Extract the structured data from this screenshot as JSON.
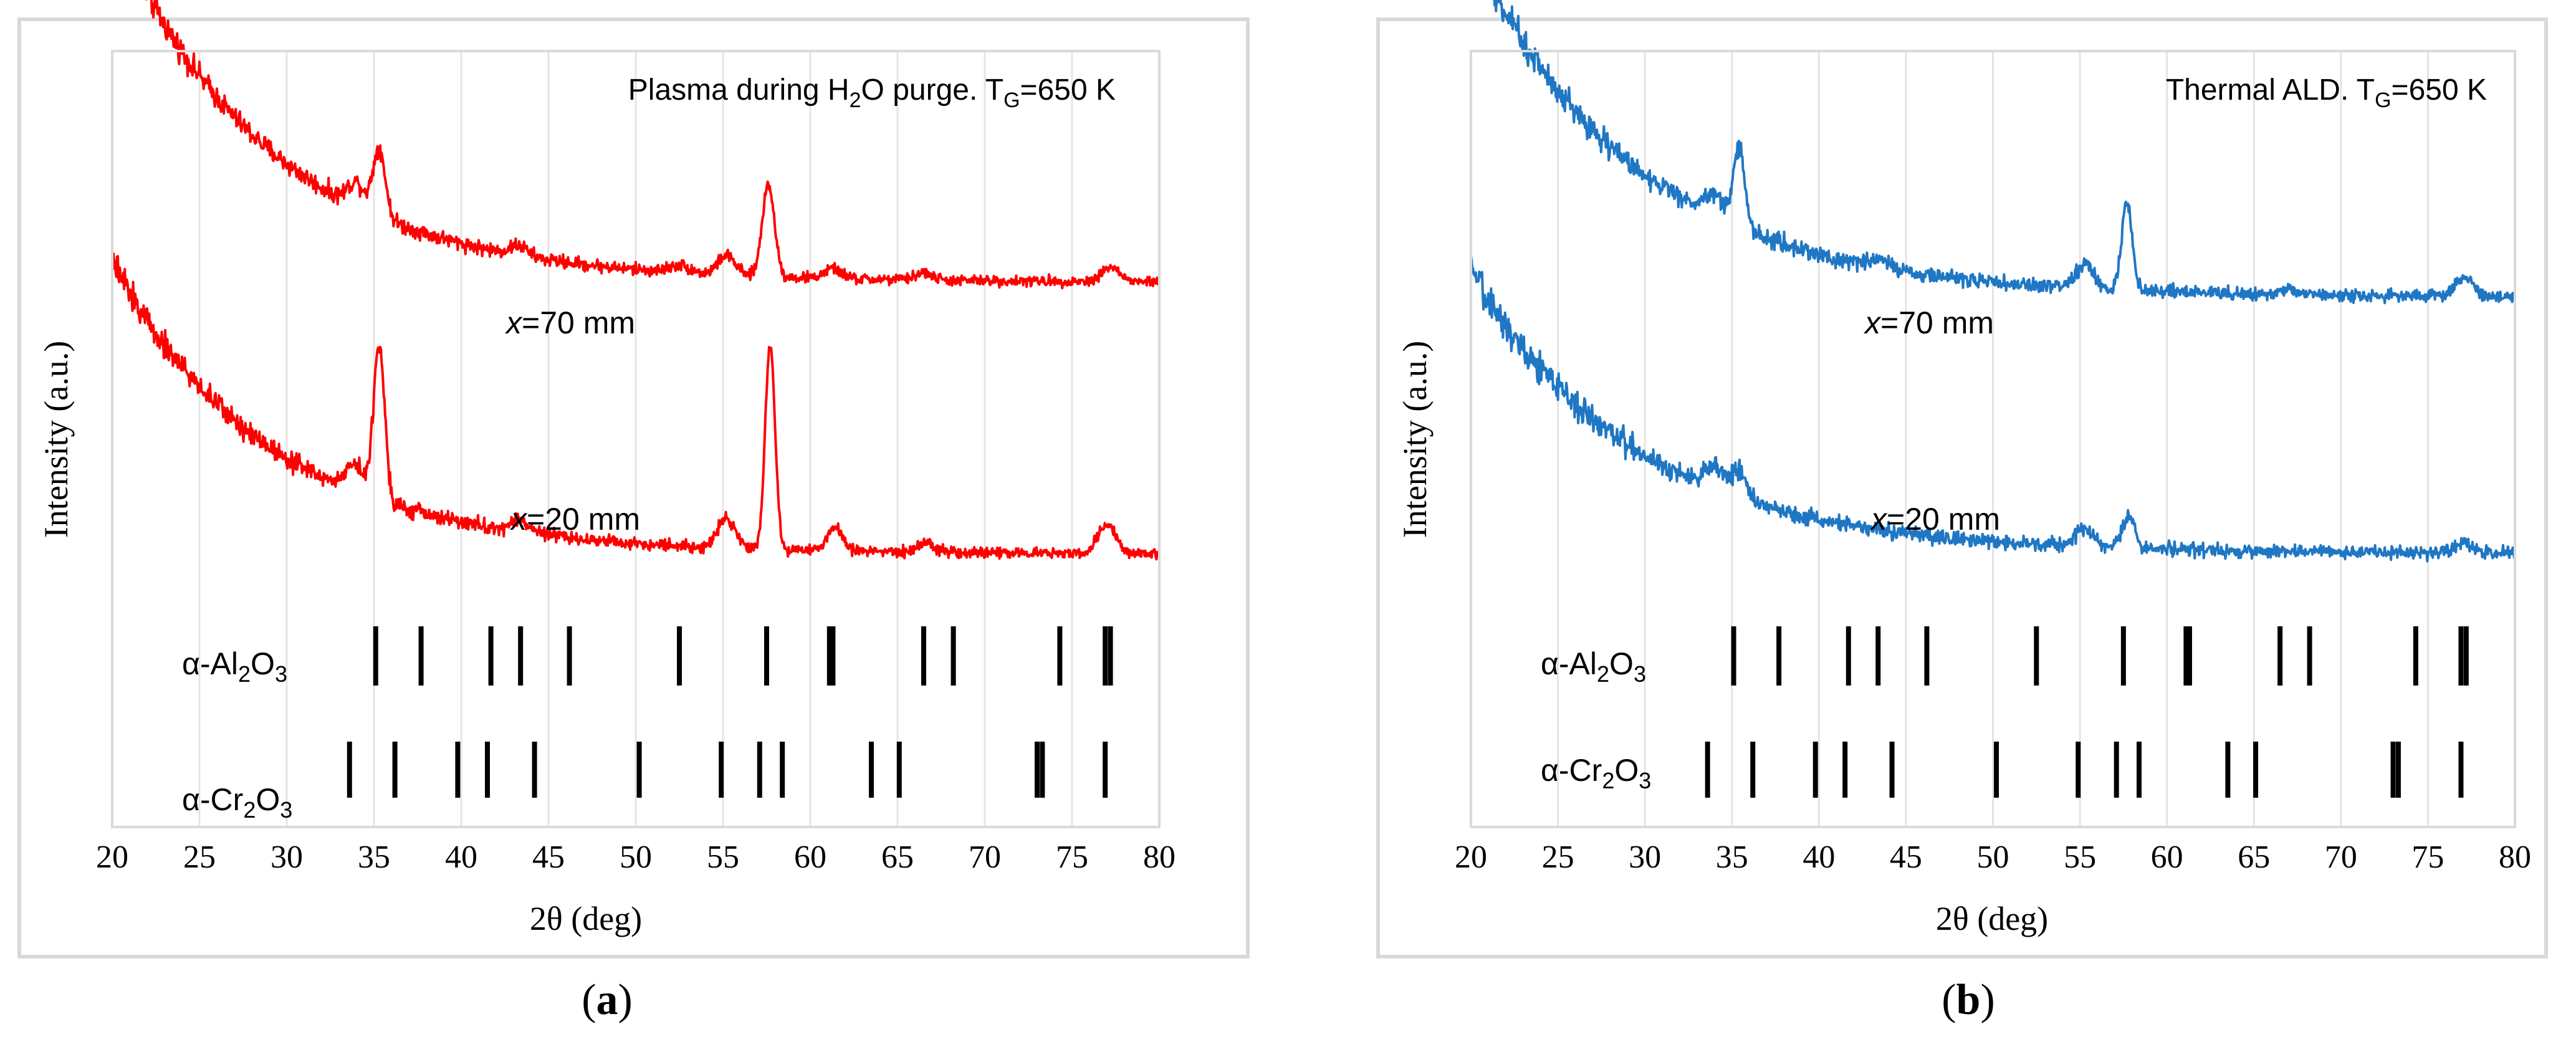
{
  "panels": [
    {
      "label": "a",
      "condition_prefix": "Plasma during H",
      "condition_sub1": "2",
      "condition_mid": "O purge.  T",
      "condition_sub2": "G",
      "condition_suffix": "=650 K",
      "ylabel": "Intensity (a.u.)",
      "xlabel": "2θ (deg)",
      "color": "#ff0000",
      "curve_labels": [
        {
          "var": "x",
          "rest": "=70 mm"
        },
        {
          "var": "x",
          "rest": "=20 mm"
        }
      ]
    },
    {
      "label": "b",
      "condition_prefix": "Thermal ALD.   T",
      "condition_sub1": "",
      "condition_mid": "",
      "condition_sub2": "G",
      "condition_suffix": "=650 K",
      "ylabel": "Intensity (a.u.)",
      "xlabel": "2θ (deg)",
      "color": "#1f77c4",
      "curve_labels": [
        {
          "var": "x",
          "rest": "=70 mm"
        },
        {
          "var": "x",
          "rest": "=20 mm"
        }
      ]
    }
  ],
  "reference_labels": {
    "al2o3": {
      "prefix": "α-Al",
      "sub1": "2",
      "mid": "O",
      "sub2": "3"
    },
    "cr2o3": {
      "prefix": "α-Cr",
      "sub1": "2",
      "mid": "O",
      "sub2": "3"
    }
  },
  "chart_data": [
    {
      "type": "line",
      "title": "Plasma during H2O purge.  TG=650 K",
      "xlabel": "2θ (deg)",
      "ylabel": "Intensity (a.u.)",
      "xlim": [
        20,
        80
      ],
      "xticks": [
        20,
        25,
        30,
        35,
        40,
        45,
        50,
        55,
        60,
        65,
        70,
        75,
        80
      ],
      "grid": "vertical",
      "series": [
        {
          "name": "x=70 mm",
          "background": {
            "end": 0.24,
            "amp": 0.74,
            "decay": 9
          },
          "noise": 0.012,
          "peaks": [
            [
              34,
              0.05,
              0.5
            ],
            [
              35.3,
              0.14,
              0.35
            ],
            [
              43.3,
              0.02,
              0.5
            ],
            [
              52.5,
              0.015,
              0.6
            ],
            [
              55.2,
              0.04,
              0.5
            ],
            [
              57.6,
              0.19,
              0.35
            ],
            [
              61.3,
              0.02,
              0.5
            ],
            [
              66.5,
              0.015,
              0.5
            ],
            [
              77.2,
              0.03,
              0.5
            ]
          ]
        },
        {
          "name": "x=20 mm",
          "background": {
            "end": 0.06,
            "amp": 0.6,
            "decay": 9
          },
          "noise": 0.012,
          "peaks": [
            [
              33.9,
              0.06,
              0.5
            ],
            [
              35.3,
              0.32,
              0.32
            ],
            [
              43.4,
              0.025,
              0.5
            ],
            [
              55.2,
              0.06,
              0.5
            ],
            [
              57.7,
              0.42,
              0.28
            ],
            [
              61.4,
              0.05,
              0.4
            ],
            [
              66.6,
              0.02,
              0.4
            ],
            [
              77.0,
              0.06,
              0.5
            ]
          ]
        }
      ],
      "reference_lines": {
        "α-Al2O3": [
          35.1,
          37.7,
          41.7,
          43.4,
          46.2,
          52.5,
          57.5,
          61.1,
          61.3,
          66.5,
          68.2,
          74.3,
          76.9,
          77.2
        ],
        "α-Cr2O3": [
          33.6,
          36.2,
          39.8,
          41.5,
          44.2,
          50.2,
          54.9,
          57.1,
          58.4,
          63.5,
          65.1,
          73.0,
          73.3,
          76.9
        ]
      }
    },
    {
      "type": "line",
      "title": "Thermal ALD.   TG=650 K",
      "xlabel": "2θ (deg)",
      "ylabel": "Intensity (a.u.)",
      "xlim": [
        20,
        80
      ],
      "xticks": [
        20,
        25,
        30,
        35,
        40,
        45,
        50,
        55,
        60,
        65,
        70,
        75,
        80
      ],
      "grid": "vertical",
      "series": [
        {
          "name": "x=70 mm",
          "background": {
            "end": 0.21,
            "amp": 0.72,
            "decay": 9.5
          },
          "noise": 0.014,
          "peaks": [
            [
              33.9,
              0.05,
              0.5
            ],
            [
              35.4,
              0.16,
              0.35
            ],
            [
              43.5,
              0.02,
              0.5
            ],
            [
              55.3,
              0.05,
              0.5
            ],
            [
              57.7,
              0.18,
              0.3
            ],
            [
              67,
              0.01,
              0.5
            ],
            [
              77.1,
              0.04,
              0.5
            ]
          ]
        },
        {
          "name": "x=20 mm",
          "background": {
            "end": 0.06,
            "amp": 0.58,
            "decay": 9.5
          },
          "noise": 0.014,
          "peaks": [
            [
              34.0,
              0.05,
              0.5
            ],
            [
              35.4,
              0.06,
              0.4
            ],
            [
              55.3,
              0.04,
              0.5
            ],
            [
              57.8,
              0.07,
              0.35
            ],
            [
              77.0,
              0.02,
              0.5
            ]
          ]
        }
      ],
      "reference_lines": {
        "α-Al2O3": [
          35.1,
          37.7,
          41.7,
          43.4,
          46.2,
          52.5,
          57.5,
          61.1,
          61.3,
          66.5,
          68.2,
          74.3,
          76.9,
          77.2
        ],
        "α-Cr2O3": [
          33.6,
          36.2,
          39.8,
          41.5,
          44.2,
          50.2,
          54.9,
          57.1,
          58.4,
          63.5,
          65.1,
          73.0,
          73.3,
          76.9
        ]
      }
    }
  ]
}
